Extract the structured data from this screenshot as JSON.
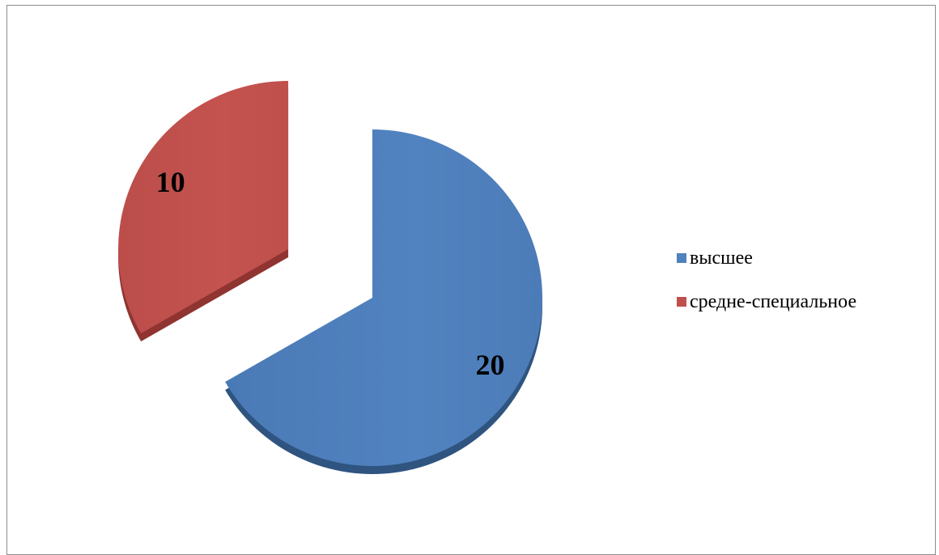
{
  "chart_data": {
    "type": "pie",
    "style": "3d-exploded",
    "title": "",
    "slices": [
      {
        "label": "высшее",
        "value": 20,
        "color": "#4f81bd"
      },
      {
        "label": "средне-специальное",
        "value": 10,
        "color": "#c0504d"
      }
    ],
    "data_labels": [
      "20",
      "10"
    ],
    "legend": {
      "placement": "right",
      "entries": [
        "высшее",
        "средне-специальное"
      ]
    }
  }
}
